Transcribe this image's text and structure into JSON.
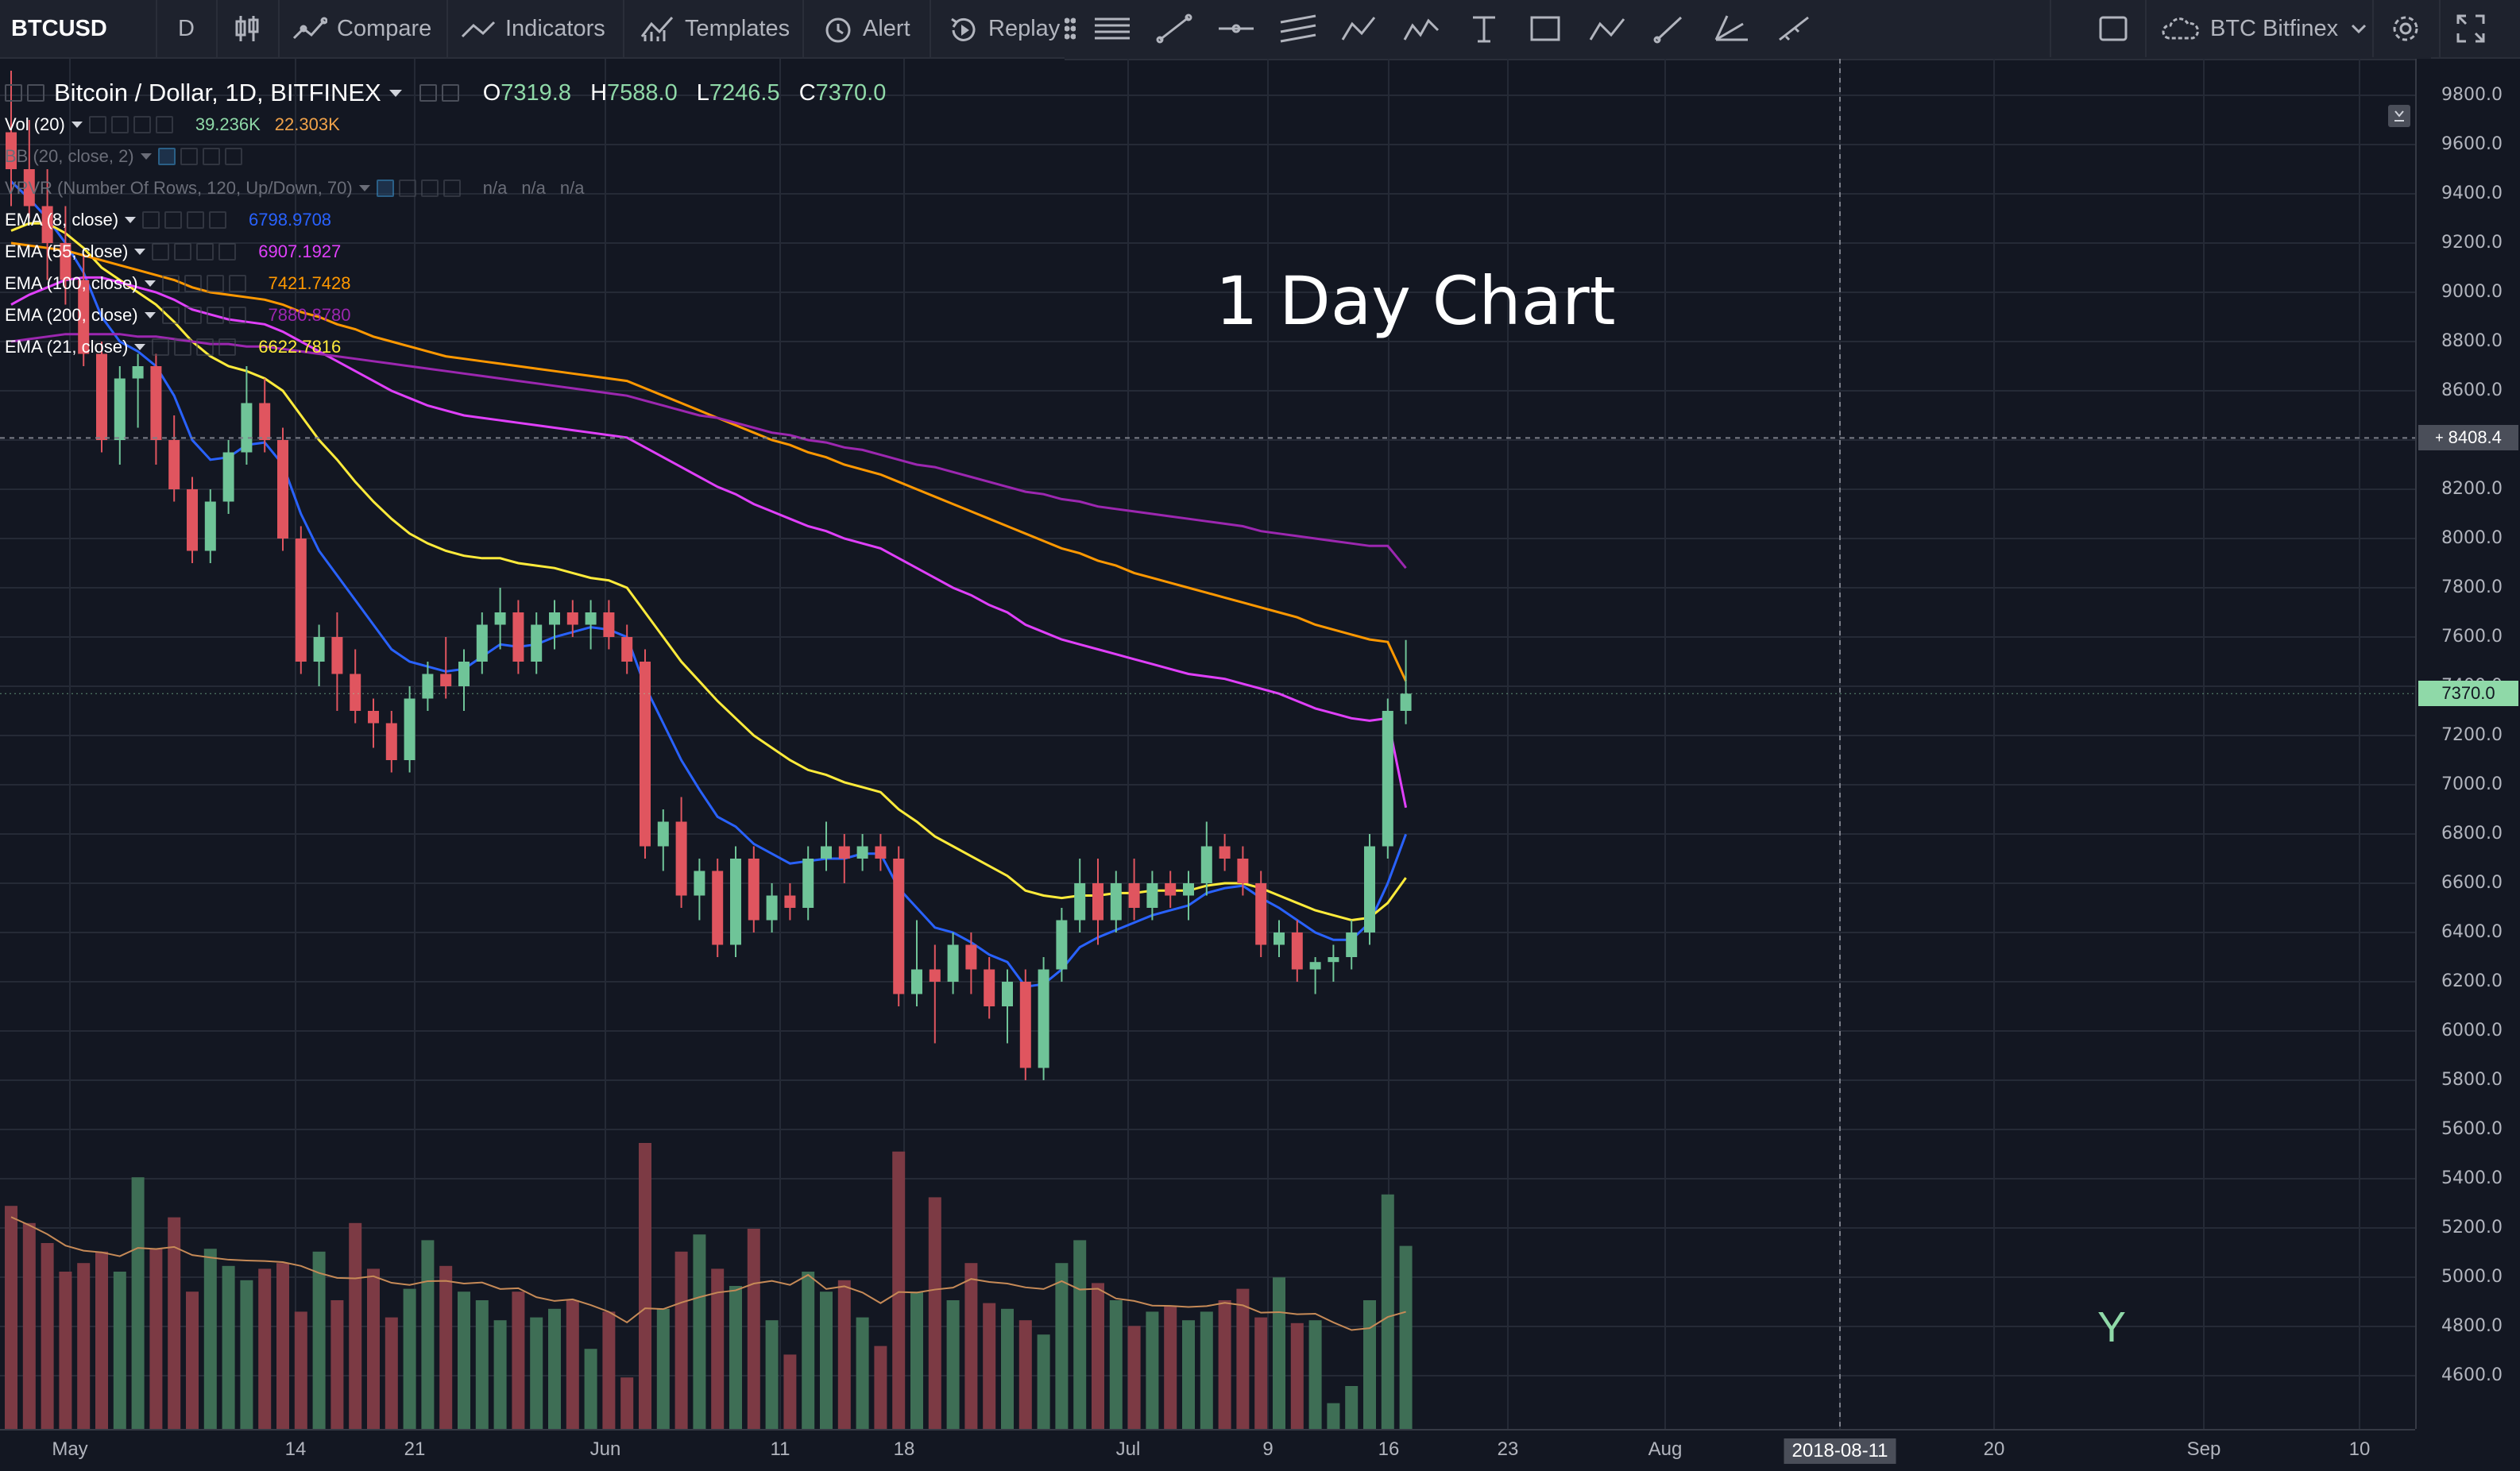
{
  "toolbar": {
    "symbol": "BTCUSD",
    "interval": "D",
    "compare": "Compare",
    "indicators": "Indicators",
    "templates": "Templates",
    "alert": "Alert",
    "replay": "Replay",
    "exchange": "BTC Bitfinex"
  },
  "legend": {
    "main_title": "Bitcoin / Dollar, 1D, BITFINEX",
    "ohlc": {
      "o_label": "O",
      "o": "7319.8",
      "h_label": "H",
      "h": "7588.0",
      "l_label": "L",
      "l": "7246.5",
      "c_label": "C",
      "c": "7370.0"
    },
    "indicators": [
      {
        "name": "Vol (20)",
        "values": [
          "39.236K",
          "22.303K"
        ],
        "colors": [
          "#8fd9a8",
          "#f0a24a"
        ]
      },
      {
        "name": "BB (20, close, 2)",
        "values": [],
        "colors": []
      },
      {
        "name": "VPVR (Number Of Rows, 120, Up/Down, 70)",
        "values": [
          "n/a",
          "n/a",
          "n/a"
        ],
        "colors": [
          "#6a6d78",
          "#6a6d78",
          "#6a6d78"
        ]
      },
      {
        "name": "EMA (8, close)",
        "values": [
          "6798.9708"
        ],
        "colors": [
          "#2962ff"
        ]
      },
      {
        "name": "EMA (55, close)",
        "values": [
          "6907.1927"
        ],
        "colors": [
          "#e040fb"
        ]
      },
      {
        "name": "EMA (100, close)",
        "values": [
          "7421.7428"
        ],
        "colors": [
          "#ff9800"
        ]
      },
      {
        "name": "EMA (200, close)",
        "values": [
          "7880.8780"
        ],
        "colors": [
          "#9c27b0"
        ]
      },
      {
        "name": "EMA (21, close)",
        "values": [
          "6622.7816"
        ],
        "colors": [
          "#ffeb3b"
        ]
      }
    ]
  },
  "annotation": "1 Day Chart",
  "watermark": "Y",
  "crosshair_price": "8408.4",
  "last_price": "7370.0",
  "chart_data": {
    "type": "candlestick",
    "title": "Bitcoin / Dollar, 1D, BITFINEX",
    "price_axis": {
      "ticks": [
        "9800.0",
        "9600.0",
        "9400.0",
        "9200.0",
        "9000.0",
        "8800.0",
        "8600.0",
        "8400.0",
        "8200.0",
        "8000.0",
        "7800.0",
        "7600.0",
        "7400.0",
        "7200.0",
        "7000.0",
        "6800.0",
        "6600.0",
        "6400.0",
        "6200.0",
        "6000.0",
        "5800.0",
        "5600.0",
        "5400.0",
        "5200.0",
        "5000.0",
        "4800.0",
        "4600.0"
      ],
      "range": [
        4450,
        9900
      ]
    },
    "time_axis": {
      "ticks": [
        "May",
        "14",
        "21",
        "Jun",
        "11",
        "18",
        "Jul",
        "9",
        "16",
        "23",
        "Aug",
        "2018-08-11",
        "20",
        "Sep",
        "10"
      ],
      "highlight": "2018-08-11"
    },
    "candles": [
      [
        9650,
        9900,
        9350,
        9500
      ],
      [
        9500,
        9700,
        9300,
        9350
      ],
      [
        9350,
        9500,
        9050,
        9200
      ],
      [
        9200,
        9350,
        8950,
        9050
      ],
      [
        9050,
        9150,
        8700,
        8750
      ],
      [
        8750,
        8800,
        8350,
        8400
      ],
      [
        8400,
        8700,
        8300,
        8650
      ],
      [
        8650,
        8750,
        8450,
        8700
      ],
      [
        8700,
        8750,
        8300,
        8400
      ],
      [
        8400,
        8500,
        8150,
        8200
      ],
      [
        8200,
        8250,
        7900,
        7950
      ],
      [
        7950,
        8200,
        7900,
        8150
      ],
      [
        8150,
        8400,
        8100,
        8350
      ],
      [
        8350,
        8700,
        8300,
        8550
      ],
      [
        8550,
        8650,
        8350,
        8400
      ],
      [
        8400,
        8450,
        7950,
        8000
      ],
      [
        8000,
        8050,
        7450,
        7500
      ],
      [
        7500,
        7650,
        7400,
        7600
      ],
      [
        7600,
        7700,
        7300,
        7450
      ],
      [
        7450,
        7550,
        7250,
        7300
      ],
      [
        7300,
        7350,
        7150,
        7250
      ],
      [
        7250,
        7300,
        7050,
        7100
      ],
      [
        7100,
        7400,
        7050,
        7350
      ],
      [
        7350,
        7500,
        7300,
        7450
      ],
      [
        7450,
        7600,
        7350,
        7400
      ],
      [
        7400,
        7550,
        7300,
        7500
      ],
      [
        7500,
        7700,
        7450,
        7650
      ],
      [
        7650,
        7800,
        7550,
        7700
      ],
      [
        7700,
        7750,
        7450,
        7500
      ],
      [
        7500,
        7700,
        7450,
        7650
      ],
      [
        7650,
        7750,
        7550,
        7700
      ],
      [
        7700,
        7750,
        7600,
        7650
      ],
      [
        7650,
        7750,
        7550,
        7700
      ],
      [
        7700,
        7750,
        7550,
        7600
      ],
      [
        7600,
        7650,
        7450,
        7500
      ],
      [
        7500,
        7550,
        6700,
        6750
      ],
      [
        6750,
        6900,
        6650,
        6850
      ],
      [
        6850,
        6950,
        6500,
        6550
      ],
      [
        6550,
        6700,
        6450,
        6650
      ],
      [
        6650,
        6700,
        6300,
        6350
      ],
      [
        6350,
        6750,
        6300,
        6700
      ],
      [
        6700,
        6750,
        6400,
        6450
      ],
      [
        6450,
        6600,
        6400,
        6550
      ],
      [
        6550,
        6600,
        6450,
        6500
      ],
      [
        6500,
        6750,
        6450,
        6700
      ],
      [
        6700,
        6850,
        6650,
        6750
      ],
      [
        6750,
        6800,
        6600,
        6700
      ],
      [
        6700,
        6800,
        6650,
        6750
      ],
      [
        6750,
        6800,
        6650,
        6700
      ],
      [
        6700,
        6750,
        6100,
        6150
      ],
      [
        6150,
        6450,
        6100,
        6250
      ],
      [
        6250,
        6350,
        5950,
        6200
      ],
      [
        6200,
        6400,
        6150,
        6350
      ],
      [
        6350,
        6400,
        6150,
        6250
      ],
      [
        6250,
        6300,
        6050,
        6100
      ],
      [
        6100,
        6250,
        5950,
        6200
      ],
      [
        6200,
        6250,
        5800,
        5850
      ],
      [
        5850,
        6300,
        5800,
        6250
      ],
      [
        6250,
        6500,
        6200,
        6450
      ],
      [
        6450,
        6700,
        6400,
        6600
      ],
      [
        6600,
        6700,
        6350,
        6450
      ],
      [
        6450,
        6650,
        6400,
        6600
      ],
      [
        6600,
        6700,
        6450,
        6500
      ],
      [
        6500,
        6650,
        6450,
        6600
      ],
      [
        6600,
        6650,
        6500,
        6550
      ],
      [
        6550,
        6650,
        6450,
        6600
      ],
      [
        6600,
        6850,
        6550,
        6750
      ],
      [
        6750,
        6800,
        6650,
        6700
      ],
      [
        6700,
        6750,
        6550,
        6600
      ],
      [
        6600,
        6650,
        6300,
        6350
      ],
      [
        6350,
        6450,
        6300,
        6400
      ],
      [
        6400,
        6450,
        6200,
        6250
      ],
      [
        6250,
        6300,
        6150,
        6280
      ],
      [
        6280,
        6350,
        6200,
        6300
      ],
      [
        6300,
        6450,
        6250,
        6400
      ],
      [
        6400,
        6800,
        6350,
        6750
      ],
      [
        6750,
        7350,
        6700,
        7300
      ],
      [
        7300,
        7588,
        7246,
        7370
      ]
    ],
    "volume_relative": [
      0.78,
      0.72,
      0.65,
      0.55,
      0.58,
      0.62,
      0.55,
      0.88,
      0.63,
      0.74,
      0.48,
      0.63,
      0.57,
      0.52,
      0.56,
      0.58,
      0.41,
      0.62,
      0.45,
      0.72,
      0.56,
      0.39,
      0.49,
      0.66,
      0.57,
      0.48,
      0.45,
      0.38,
      0.48,
      0.39,
      0.42,
      0.45,
      0.28,
      0.41,
      0.18,
      1.0,
      0.42,
      0.62,
      0.68,
      0.56,
      0.5,
      0.7,
      0.38,
      0.26,
      0.55,
      0.48,
      0.52,
      0.39,
      0.29,
      0.97,
      0.48,
      0.81,
      0.45,
      0.58,
      0.44,
      0.42,
      0.38,
      0.33,
      0.58,
      0.66,
      0.51,
      0.45,
      0.36,
      0.41,
      0.43,
      0.38,
      0.41,
      0.45,
      0.49,
      0.39,
      0.53,
      0.37,
      0.38,
      0.09,
      0.15,
      0.45,
      0.82,
      0.64
    ],
    "ema_series": [
      {
        "name": "EMA (8, close)",
        "color": "#2962ff",
        "values": [
          9450,
          9380,
          9300,
          9200,
          9080,
          8900,
          8800,
          8760,
          8700,
          8580,
          8400,
          8320,
          8330,
          8380,
          8390,
          8300,
          8100,
          7950,
          7850,
          7750,
          7650,
          7550,
          7500,
          7480,
          7460,
          7470,
          7520,
          7570,
          7560,
          7570,
          7600,
          7620,
          7640,
          7630,
          7600,
          7400,
          7250,
          7100,
          6980,
          6870,
          6830,
          6760,
          6720,
          6680,
          6690,
          6700,
          6700,
          6720,
          6720,
          6580,
          6500,
          6420,
          6400,
          6360,
          6310,
          6280,
          6180,
          6190,
          6250,
          6340,
          6380,
          6410,
          6440,
          6470,
          6490,
          6510,
          6560,
          6580,
          6590,
          6540,
          6500,
          6450,
          6400,
          6370,
          6370,
          6440,
          6600,
          6799
        ]
      },
      {
        "name": "EMA (21, close)",
        "color": "#ffeb3b",
        "values": [
          9250,
          9280,
          9280,
          9240,
          9180,
          9100,
          9050,
          9000,
          8950,
          8880,
          8800,
          8740,
          8700,
          8680,
          8650,
          8600,
          8500,
          8400,
          8320,
          8230,
          8150,
          8080,
          8020,
          7980,
          7950,
          7930,
          7920,
          7920,
          7900,
          7890,
          7880,
          7860,
          7840,
          7830,
          7800,
          7700,
          7600,
          7500,
          7420,
          7340,
          7270,
          7200,
          7150,
          7100,
          7060,
          7040,
          7010,
          6990,
          6970,
          6900,
          6850,
          6790,
          6750,
          6710,
          6670,
          6630,
          6570,
          6550,
          6540,
          6550,
          6550,
          6560,
          6560,
          6570,
          6570,
          6570,
          6590,
          6600,
          6600,
          6580,
          6550,
          6520,
          6490,
          6470,
          6450,
          6460,
          6520,
          6622
        ]
      },
      {
        "name": "EMA (55, close)",
        "color": "#e040fb",
        "values": [
          8950,
          8990,
          9020,
          9050,
          9060,
          9060,
          9040,
          9020,
          9000,
          8970,
          8930,
          8910,
          8890,
          8880,
          8870,
          8840,
          8800,
          8760,
          8720,
          8680,
          8640,
          8600,
          8570,
          8540,
          8520,
          8500,
          8490,
          8480,
          8470,
          8460,
          8450,
          8440,
          8430,
          8420,
          8410,
          8370,
          8330,
          8290,
          8250,
          8210,
          8180,
          8140,
          8110,
          8080,
          8050,
          8030,
          8000,
          7980,
          7960,
          7920,
          7880,
          7840,
          7800,
          7770,
          7730,
          7700,
          7650,
          7620,
          7590,
          7570,
          7550,
          7530,
          7510,
          7490,
          7470,
          7450,
          7440,
          7430,
          7410,
          7390,
          7370,
          7340,
          7310,
          7290,
          7270,
          7260,
          7270,
          6907
        ]
      },
      {
        "name": "EMA (100, close)",
        "color": "#ff9800",
        "values": [
          9200,
          9190,
          9180,
          9170,
          9150,
          9130,
          9110,
          9090,
          9070,
          9050,
          9020,
          9000,
          8990,
          8980,
          8970,
          8950,
          8920,
          8900,
          8870,
          8850,
          8820,
          8800,
          8780,
          8760,
          8740,
          8730,
          8720,
          8710,
          8700,
          8690,
          8680,
          8670,
          8660,
          8650,
          8640,
          8610,
          8580,
          8550,
          8520,
          8490,
          8460,
          8430,
          8400,
          8380,
          8350,
          8330,
          8300,
          8280,
          8260,
          8230,
          8200,
          8170,
          8140,
          8110,
          8080,
          8050,
          8020,
          7990,
          7960,
          7940,
          7910,
          7890,
          7860,
          7840,
          7820,
          7800,
          7780,
          7760,
          7740,
          7720,
          7700,
          7680,
          7650,
          7630,
          7610,
          7590,
          7580,
          7421
        ]
      },
      {
        "name": "EMA (200, close)",
        "color": "#9c27b0",
        "values": [
          8800,
          8810,
          8820,
          8830,
          8830,
          8830,
          8830,
          8820,
          8820,
          8810,
          8800,
          8790,
          8790,
          8780,
          8780,
          8770,
          8760,
          8750,
          8740,
          8730,
          8720,
          8710,
          8700,
          8690,
          8680,
          8670,
          8660,
          8650,
          8640,
          8630,
          8620,
          8610,
          8600,
          8590,
          8580,
          8560,
          8540,
          8520,
          8500,
          8490,
          8470,
          8450,
          8430,
          8420,
          8400,
          8390,
          8370,
          8360,
          8340,
          8320,
          8300,
          8290,
          8270,
          8250,
          8230,
          8210,
          8190,
          8180,
          8160,
          8150,
          8130,
          8120,
          8110,
          8100,
          8090,
          8080,
          8070,
          8060,
          8050,
          8030,
          8020,
          8010,
          8000,
          7990,
          7980,
          7970,
          7970,
          7880
        ]
      }
    ]
  }
}
